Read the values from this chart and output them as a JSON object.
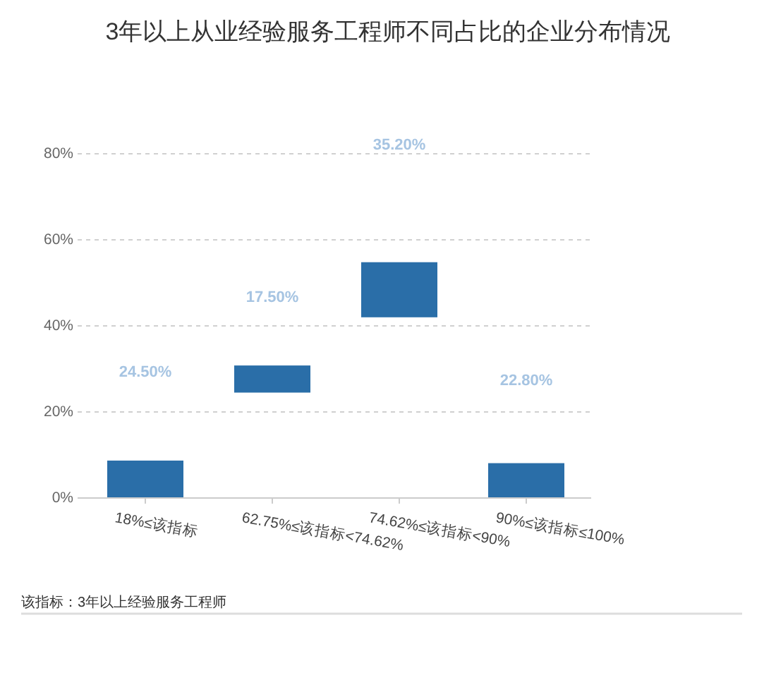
{
  "chart_data": {
    "type": "bar",
    "title": "3年以上从业经验服务工程师不同占比的企业分布情况",
    "categories": [
      "18%≤该指标",
      "62.75%≤该指标<74.62%",
      "74.62%≤该指标<90%",
      "90%≤该指标≤100%"
    ],
    "values": [
      8.7,
      6.3,
      12.8,
      8.1
    ],
    "base": [
      0,
      24.5,
      42,
      0
    ],
    "color": "#2a6ea8",
    "ylim": [
      0,
      80
    ],
    "yticks": [
      {
        "value": 0,
        "label": "0%"
      },
      {
        "value": 20,
        "label": "20%"
      },
      {
        "value": 40,
        "label": "40%"
      },
      {
        "value": 60,
        "label": "60%"
      },
      {
        "value": 80,
        "label": "80%"
      }
    ],
    "grid": "y",
    "annotations": [
      "24.50%",
      "17.50%",
      "35.20%",
      "22.80%",
      "该指标：3年以上经验服务工程师"
    ]
  }
}
